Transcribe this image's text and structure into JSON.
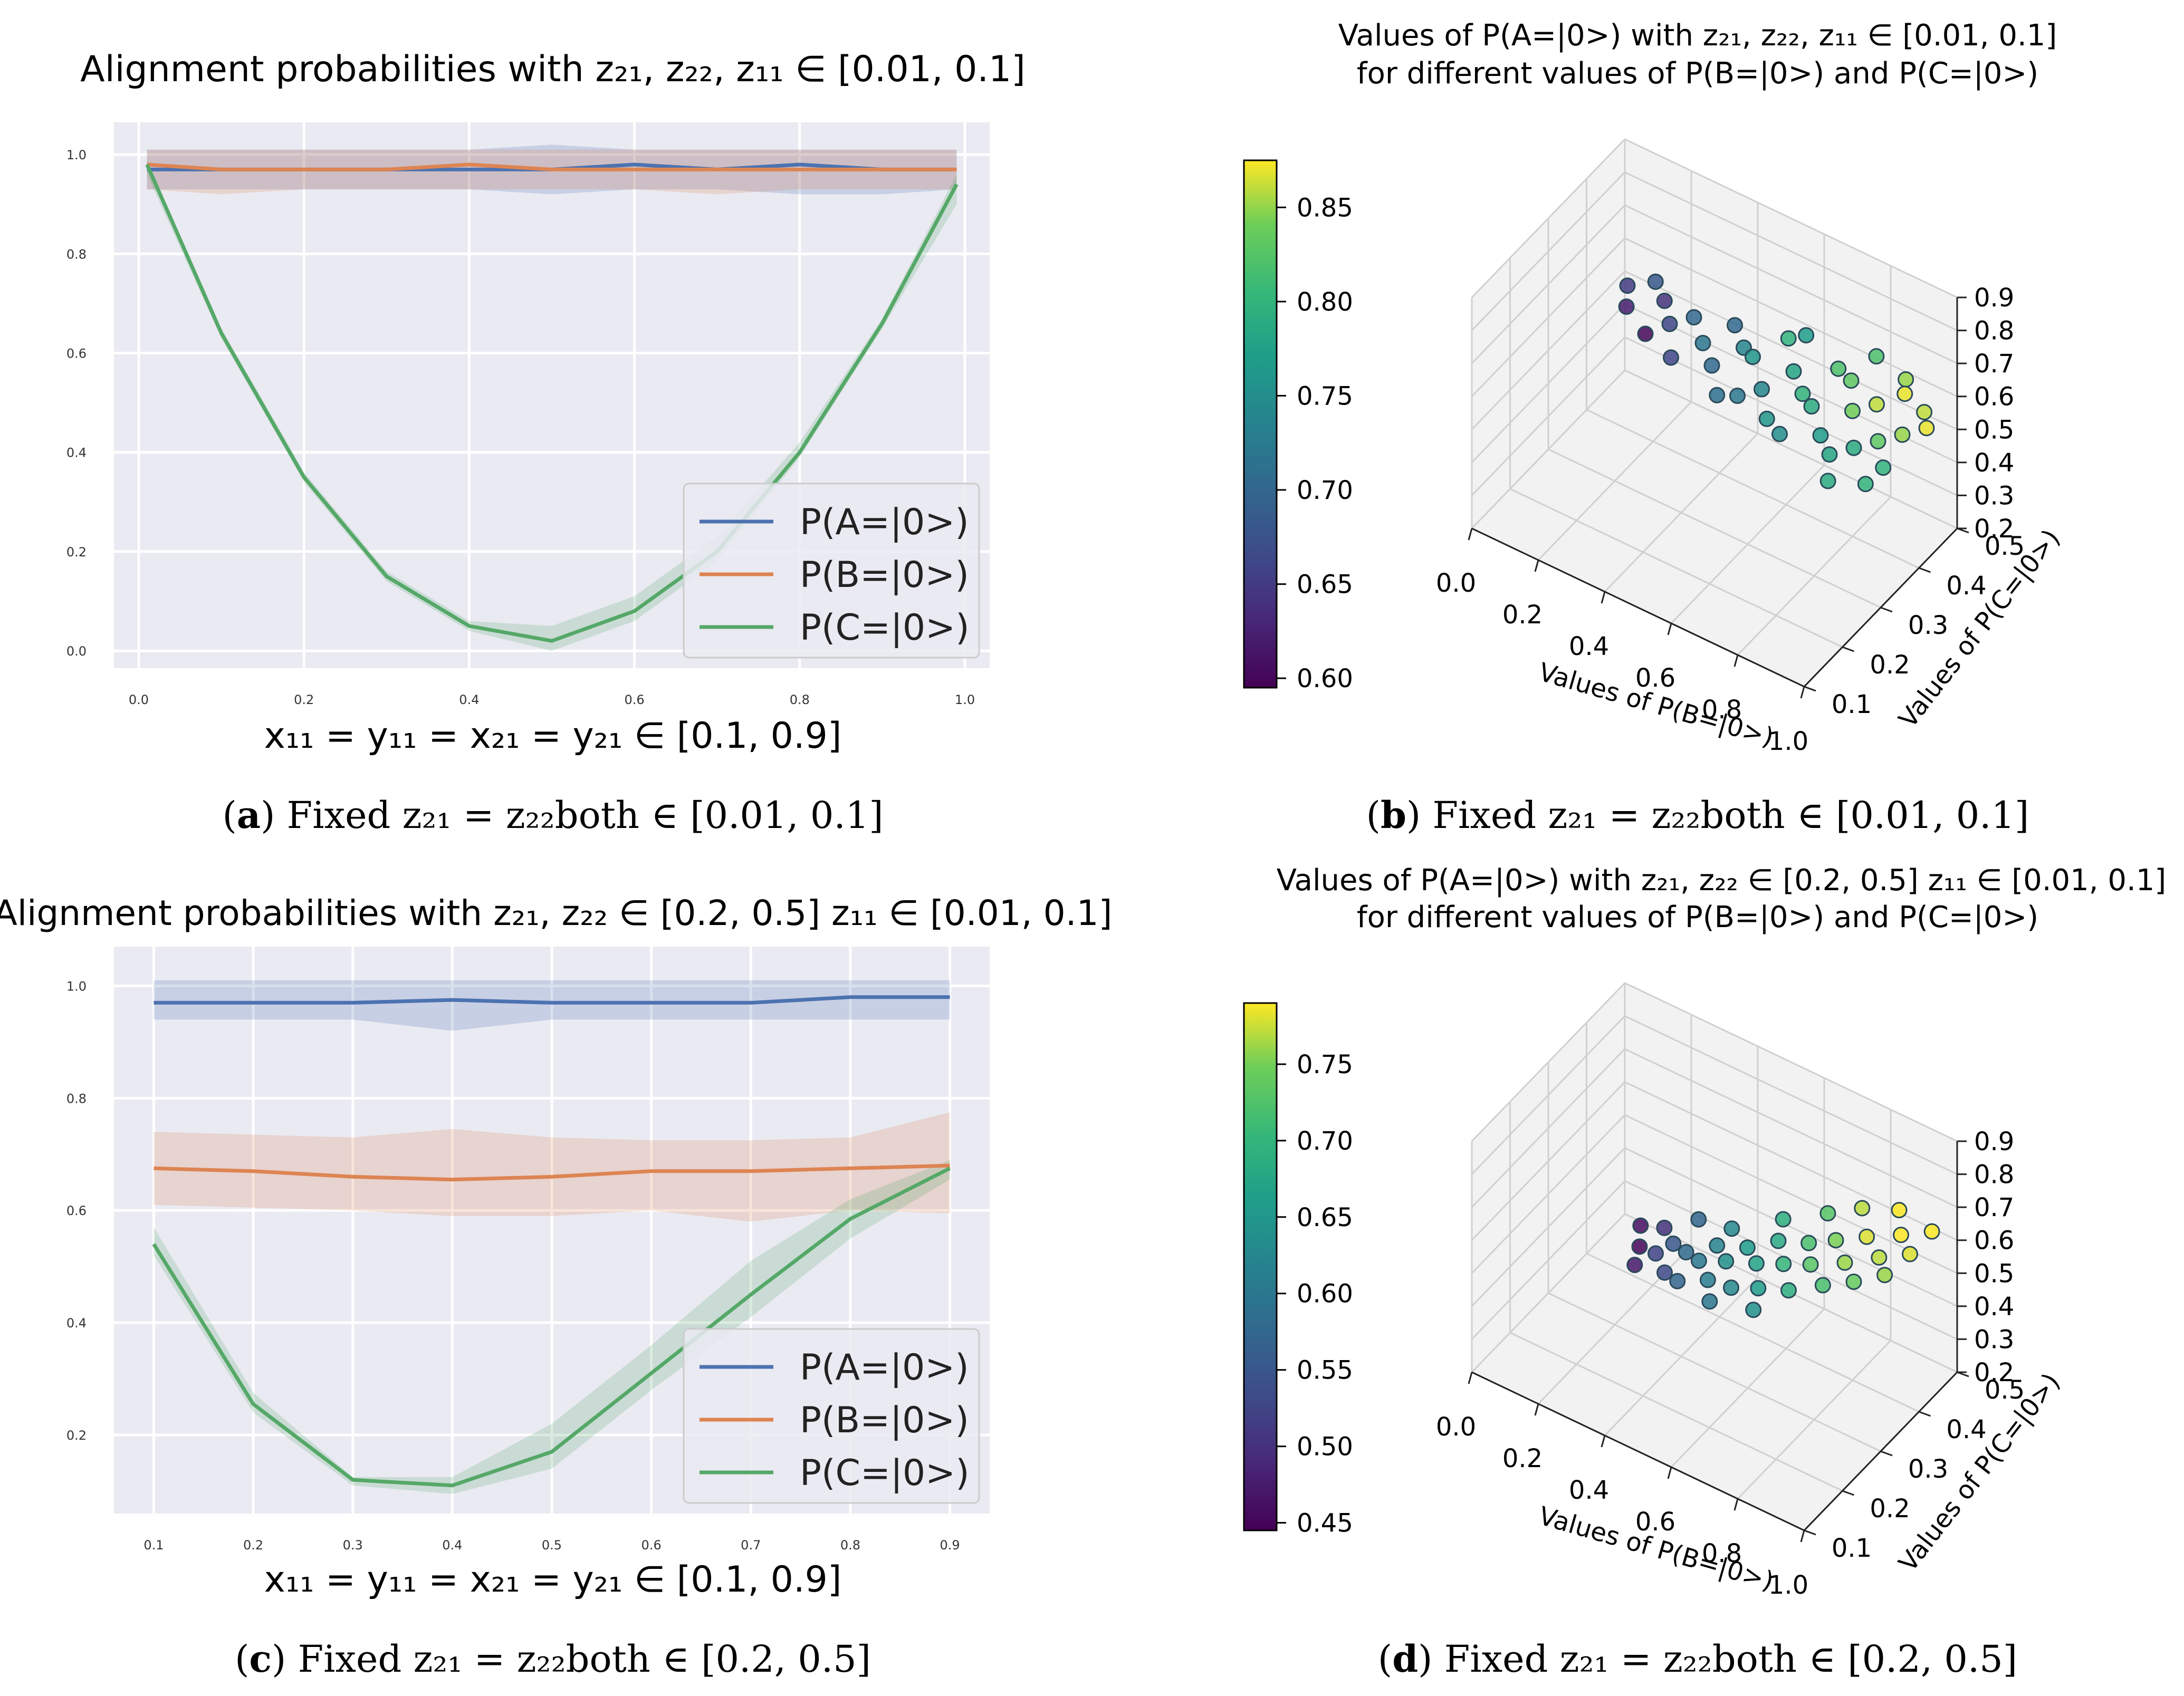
{
  "colors": {
    "panel_bg": "#eaeaf2",
    "grid": "#ffffff",
    "series": [
      "#4c72b0",
      "#dd8452",
      "#55a868"
    ],
    "pane3d": "#f2f2f2",
    "grid3d": "#d0d0d0"
  },
  "captions": [
    {
      "letter": "a",
      "text": "Fixed z₂₁ = z₂₂both ∈ [0.01, 0.1]"
    },
    {
      "letter": "b",
      "text": "Fixed z₂₁ = z₂₂both ∈ [0.01, 0.1]"
    },
    {
      "letter": "c",
      "text": "Fixed z₂₁ = z₂₂both ∈ [0.2, 0.5]"
    },
    {
      "letter": "d",
      "text": "Fixed z₂₁ = z₂₂both ∈ [0.2, 0.5]"
    }
  ],
  "chart_data": [
    {
      "id": "a",
      "type": "line",
      "title": "Alignment probabilities with z₂₁, z₂₂, z₁₁ ∈ [0.01, 0.1]",
      "xlabel": "x₁₁ = y₁₁ = x₂₁ = y₂₁ ∈ [0.1, 0.9]",
      "ylabel": "",
      "xlim": [
        -0.03,
        1.03
      ],
      "ylim": [
        -0.035,
        1.065
      ],
      "xticks": [
        0.0,
        0.2,
        0.4,
        0.6,
        0.8,
        1.0
      ],
      "xtick_labels": [
        "0.0",
        "0.2",
        "0.4",
        "0.6",
        "0.8",
        "1.0"
      ],
      "yticks": [
        0.0,
        0.2,
        0.4,
        0.6,
        0.8,
        1.0
      ],
      "ytick_labels": [
        "0.0",
        "0.2",
        "0.4",
        "0.6",
        "0.8",
        "1.0"
      ],
      "legend_loc": "lower-right",
      "x": [
        0.01,
        0.1,
        0.2,
        0.3,
        0.4,
        0.5,
        0.6,
        0.7,
        0.8,
        0.9,
        0.99
      ],
      "series": [
        {
          "name": "P(A=|0>)",
          "values": [
            0.97,
            0.97,
            0.97,
            0.97,
            0.97,
            0.97,
            0.98,
            0.97,
            0.98,
            0.97,
            0.97
          ],
          "band_low": [
            0.93,
            0.93,
            0.93,
            0.93,
            0.93,
            0.92,
            0.93,
            0.93,
            0.92,
            0.92,
            0.93
          ],
          "band_high": [
            1.01,
            1.01,
            1.01,
            1.01,
            1.01,
            1.02,
            1.01,
            1.01,
            1.01,
            1.01,
            1.01
          ]
        },
        {
          "name": "P(B=|0>)",
          "values": [
            0.98,
            0.97,
            0.97,
            0.97,
            0.98,
            0.97,
            0.97,
            0.97,
            0.97,
            0.97,
            0.97
          ],
          "band_low": [
            0.93,
            0.92,
            0.93,
            0.93,
            0.93,
            0.93,
            0.93,
            0.92,
            0.93,
            0.93,
            0.93
          ],
          "band_high": [
            1.01,
            1.01,
            1.01,
            1.01,
            1.01,
            1.01,
            1.01,
            1.01,
            1.01,
            1.01,
            1.01
          ]
        },
        {
          "name": "P(C=|0>)",
          "values": [
            0.98,
            0.64,
            0.35,
            0.15,
            0.05,
            0.02,
            0.08,
            0.2,
            0.4,
            0.66,
            0.94
          ],
          "band_low": [
            0.96,
            0.63,
            0.34,
            0.14,
            0.04,
            0.0,
            0.06,
            0.18,
            0.39,
            0.65,
            0.9
          ],
          "band_high": [
            0.99,
            0.65,
            0.36,
            0.16,
            0.06,
            0.05,
            0.11,
            0.23,
            0.42,
            0.67,
            0.96
          ]
        }
      ]
    },
    {
      "id": "b",
      "type": "scatter",
      "title": "Values of P(A=|0>) with z₂₁, z₂₂, z₁₁ ∈ [0.01, 0.1]",
      "subtitle": "for different values of P(B=|0>) and P(C=|0>)",
      "xlabel": "Values of P(B=|0>)",
      "ylabel": "Values of P(C=|0>)",
      "xticks": [
        0.0,
        0.2,
        0.4,
        0.6,
        0.8,
        1.0
      ],
      "xtick_labels": [
        "0.0",
        "0.2",
        "0.4",
        "0.6",
        "0.8",
        "1.0"
      ],
      "yticks": [
        0.1,
        0.2,
        0.3,
        0.4,
        0.5
      ],
      "ytick_labels": [
        "0.1",
        "0.2",
        "0.3",
        "0.4",
        "0.5"
      ],
      "zticks": [
        0.2,
        0.3,
        0.4,
        0.5,
        0.6,
        0.7,
        0.8,
        0.9
      ],
      "ztick_labels": [
        "0.2",
        "0.3",
        "0.4",
        "0.5",
        "0.6",
        "0.7",
        "0.8",
        "0.9"
      ],
      "xlim": [
        0.0,
        1.0
      ],
      "ylim": [
        0.1,
        0.5
      ],
      "zlim": [
        0.2,
        0.9
      ],
      "colorbar": {
        "min": 0.595,
        "max": 0.875,
        "ticks": [
          0.6,
          0.65,
          0.7,
          0.75,
          0.8,
          0.85
        ],
        "tick_labels": [
          "0.60",
          "0.65",
          "0.70",
          "0.75",
          "0.80",
          "0.85"
        ]
      },
      "points": [
        [
          0.1,
          0.42,
          0.6,
          0.65
        ],
        [
          0.12,
          0.4,
          0.57,
          0.62
        ],
        [
          0.15,
          0.45,
          0.6,
          0.68
        ],
        [
          0.2,
          0.43,
          0.59,
          0.64
        ],
        [
          0.2,
          0.38,
          0.55,
          0.6
        ],
        [
          0.25,
          0.4,
          0.58,
          0.66
        ],
        [
          0.3,
          0.42,
          0.6,
          0.7
        ],
        [
          0.3,
          0.36,
          0.55,
          0.66
        ],
        [
          0.35,
          0.4,
          0.57,
          0.72
        ],
        [
          0.4,
          0.38,
          0.55,
          0.7
        ],
        [
          0.45,
          0.42,
          0.58,
          0.74
        ],
        [
          0.5,
          0.36,
          0.53,
          0.72
        ],
        [
          0.5,
          0.4,
          0.6,
          0.76
        ],
        [
          0.55,
          0.38,
          0.55,
          0.74
        ],
        [
          0.6,
          0.42,
          0.58,
          0.78
        ],
        [
          0.6,
          0.35,
          0.52,
          0.76
        ],
        [
          0.65,
          0.4,
          0.56,
          0.8
        ],
        [
          0.7,
          0.38,
          0.57,
          0.79
        ],
        [
          0.7,
          0.45,
          0.6,
          0.82
        ],
        [
          0.75,
          0.36,
          0.53,
          0.77
        ],
        [
          0.8,
          0.4,
          0.58,
          0.84
        ],
        [
          0.8,
          0.34,
          0.52,
          0.78
        ],
        [
          0.85,
          0.42,
          0.6,
          0.86
        ],
        [
          0.9,
          0.38,
          0.56,
          0.83
        ],
        [
          0.9,
          0.45,
          0.62,
          0.87
        ],
        [
          0.95,
          0.4,
          0.58,
          0.85
        ],
        [
          0.95,
          0.35,
          0.54,
          0.8
        ],
        [
          1.0,
          0.42,
          0.6,
          0.87
        ],
        [
          0.55,
          0.45,
          0.62,
          0.8
        ],
        [
          0.75,
          0.44,
          0.6,
          0.83
        ],
        [
          0.85,
          0.36,
          0.54,
          0.79
        ],
        [
          0.65,
          0.34,
          0.51,
          0.75
        ],
        [
          0.4,
          0.44,
          0.6,
          0.7
        ],
        [
          0.92,
          0.33,
          0.5,
          0.8
        ],
        [
          0.97,
          0.44,
          0.61,
          0.86
        ],
        [
          0.88,
          0.47,
          0.63,
          0.85
        ],
        [
          0.78,
          0.48,
          0.64,
          0.82
        ],
        [
          0.58,
          0.47,
          0.62,
          0.77
        ],
        [
          0.45,
          0.35,
          0.52,
          0.71
        ],
        [
          0.83,
          0.31,
          0.49,
          0.79
        ]
      ]
    },
    {
      "id": "c",
      "type": "line",
      "title": "Alignment probabilities with z₂₁, z₂₂ ∈ [0.2, 0.5] z₁₁ ∈ [0.01, 0.1]",
      "xlabel": "x₁₁ = y₁₁ = x₂₁ = y₂₁ ∈ [0.1, 0.9]",
      "ylabel": "",
      "xlim": [
        0.06,
        0.94
      ],
      "ylim": [
        0.06,
        1.07
      ],
      "xticks": [
        0.1,
        0.2,
        0.3,
        0.4,
        0.5,
        0.6,
        0.7,
        0.8,
        0.9
      ],
      "xtick_labels": [
        "0.1",
        "0.2",
        "0.3",
        "0.4",
        "0.5",
        "0.6",
        "0.7",
        "0.8",
        "0.9"
      ],
      "yticks": [
        0.2,
        0.4,
        0.6,
        0.8,
        1.0
      ],
      "ytick_labels": [
        "0.2",
        "0.4",
        "0.6",
        "0.8",
        "1.0"
      ],
      "legend_loc": "lower-right",
      "x": [
        0.1,
        0.2,
        0.3,
        0.4,
        0.5,
        0.6,
        0.7,
        0.8,
        0.9
      ],
      "series": [
        {
          "name": "P(A=|0>)",
          "values": [
            0.97,
            0.97,
            0.97,
            0.975,
            0.97,
            0.97,
            0.97,
            0.98,
            0.98
          ],
          "band_low": [
            0.94,
            0.94,
            0.94,
            0.92,
            0.94,
            0.94,
            0.94,
            0.94,
            0.94
          ],
          "band_high": [
            1.01,
            1.01,
            1.01,
            1.01,
            1.01,
            1.01,
            1.01,
            1.01,
            1.01
          ]
        },
        {
          "name": "P(B=|0>)",
          "values": [
            0.675,
            0.67,
            0.66,
            0.655,
            0.66,
            0.67,
            0.67,
            0.675,
            0.68
          ],
          "band_low": [
            0.61,
            0.605,
            0.6,
            0.59,
            0.59,
            0.6,
            0.58,
            0.6,
            0.595
          ],
          "band_high": [
            0.74,
            0.735,
            0.73,
            0.745,
            0.73,
            0.725,
            0.725,
            0.73,
            0.775
          ]
        },
        {
          "name": "P(C=|0>)",
          "values": [
            0.54,
            0.255,
            0.12,
            0.11,
            0.17,
            0.31,
            0.45,
            0.585,
            0.675
          ],
          "band_low": [
            0.52,
            0.24,
            0.11,
            0.095,
            0.14,
            0.28,
            0.41,
            0.55,
            0.655
          ],
          "band_high": [
            0.57,
            0.275,
            0.125,
            0.125,
            0.22,
            0.36,
            0.51,
            0.62,
            0.69
          ]
        }
      ]
    },
    {
      "id": "d",
      "type": "scatter",
      "title": "Values of P(A=|0>) with z₂₁, z₂₂ ∈ [0.2, 0.5] z₁₁ ∈ [0.01, 0.1]",
      "subtitle": "for different values of P(B=|0>) and P(C=|0>)",
      "xlabel": "Values of P(B=|0>)",
      "ylabel": "Values of P(C=|0>)",
      "xticks": [
        0.0,
        0.2,
        0.4,
        0.6,
        0.8,
        1.0
      ],
      "xtick_labels": [
        "0.0",
        "0.2",
        "0.4",
        "0.6",
        "0.8",
        "1.0"
      ],
      "yticks": [
        0.1,
        0.2,
        0.3,
        0.4,
        0.5
      ],
      "ytick_labels": [
        "0.1",
        "0.2",
        "0.3",
        "0.4",
        "0.5"
      ],
      "zticks": [
        0.2,
        0.3,
        0.4,
        0.5,
        0.6,
        0.7,
        0.8,
        0.9
      ],
      "ztick_labels": [
        "0.2",
        "0.3",
        "0.4",
        "0.5",
        "0.6",
        "0.7",
        "0.8",
        "0.9"
      ],
      "xlim": [
        0.0,
        1.0
      ],
      "ylim": [
        0.1,
        0.5
      ],
      "zlim": [
        0.2,
        0.9
      ],
      "colorbar": {
        "min": 0.445,
        "max": 0.79,
        "ticks": [
          0.45,
          0.5,
          0.55,
          0.6,
          0.65,
          0.7,
          0.75
        ],
        "tick_labels": [
          "0.45",
          "0.50",
          "0.55",
          "0.60",
          "0.65",
          "0.70",
          "0.75"
        ]
      },
      "points": [
        [
          0.22,
          0.35,
          0.45,
          0.46
        ],
        [
          0.24,
          0.33,
          0.42,
          0.45
        ],
        [
          0.26,
          0.3,
          0.41,
          0.47
        ],
        [
          0.28,
          0.36,
          0.46,
          0.5
        ],
        [
          0.3,
          0.32,
          0.44,
          0.52
        ],
        [
          0.33,
          0.34,
          0.46,
          0.55
        ],
        [
          0.35,
          0.3,
          0.43,
          0.53
        ],
        [
          0.38,
          0.33,
          0.47,
          0.58
        ],
        [
          0.4,
          0.29,
          0.44,
          0.57
        ],
        [
          0.43,
          0.32,
          0.48,
          0.6
        ],
        [
          0.45,
          0.35,
          0.5,
          0.62
        ],
        [
          0.48,
          0.3,
          0.47,
          0.61
        ],
        [
          0.5,
          0.33,
          0.5,
          0.64
        ],
        [
          0.53,
          0.36,
          0.52,
          0.66
        ],
        [
          0.55,
          0.3,
          0.48,
          0.63
        ],
        [
          0.58,
          0.34,
          0.52,
          0.67
        ],
        [
          0.6,
          0.38,
          0.55,
          0.68
        ],
        [
          0.62,
          0.31,
          0.5,
          0.66
        ],
        [
          0.65,
          0.35,
          0.54,
          0.7
        ],
        [
          0.68,
          0.39,
          0.57,
          0.72
        ],
        [
          0.7,
          0.32,
          0.52,
          0.69
        ],
        [
          0.72,
          0.36,
          0.56,
          0.73
        ],
        [
          0.75,
          0.4,
          0.6,
          0.75
        ],
        [
          0.78,
          0.34,
          0.55,
          0.72
        ],
        [
          0.8,
          0.38,
          0.58,
          0.76
        ],
        [
          0.82,
          0.42,
          0.62,
          0.78
        ],
        [
          0.85,
          0.36,
          0.57,
          0.74
        ],
        [
          0.88,
          0.4,
          0.61,
          0.77
        ],
        [
          0.9,
          0.44,
          0.64,
          0.79
        ],
        [
          0.92,
          0.38,
          0.6,
          0.76
        ],
        [
          0.95,
          0.42,
          0.63,
          0.78
        ],
        [
          0.97,
          0.46,
          0.66,
          0.79
        ],
        [
          0.58,
          0.41,
          0.57,
          0.69
        ],
        [
          0.68,
          0.44,
          0.6,
          0.73
        ],
        [
          0.76,
          0.46,
          0.63,
          0.77
        ],
        [
          0.86,
          0.47,
          0.66,
          0.79
        ],
        [
          0.46,
          0.38,
          0.52,
          0.63
        ],
        [
          0.36,
          0.38,
          0.5,
          0.57
        ],
        [
          0.52,
          0.27,
          0.46,
          0.6
        ],
        [
          0.64,
          0.28,
          0.48,
          0.64
        ]
      ]
    }
  ],
  "legend_items": [
    "P(A=|0>)",
    "P(B=|0>)",
    "P(C=|0>)"
  ]
}
